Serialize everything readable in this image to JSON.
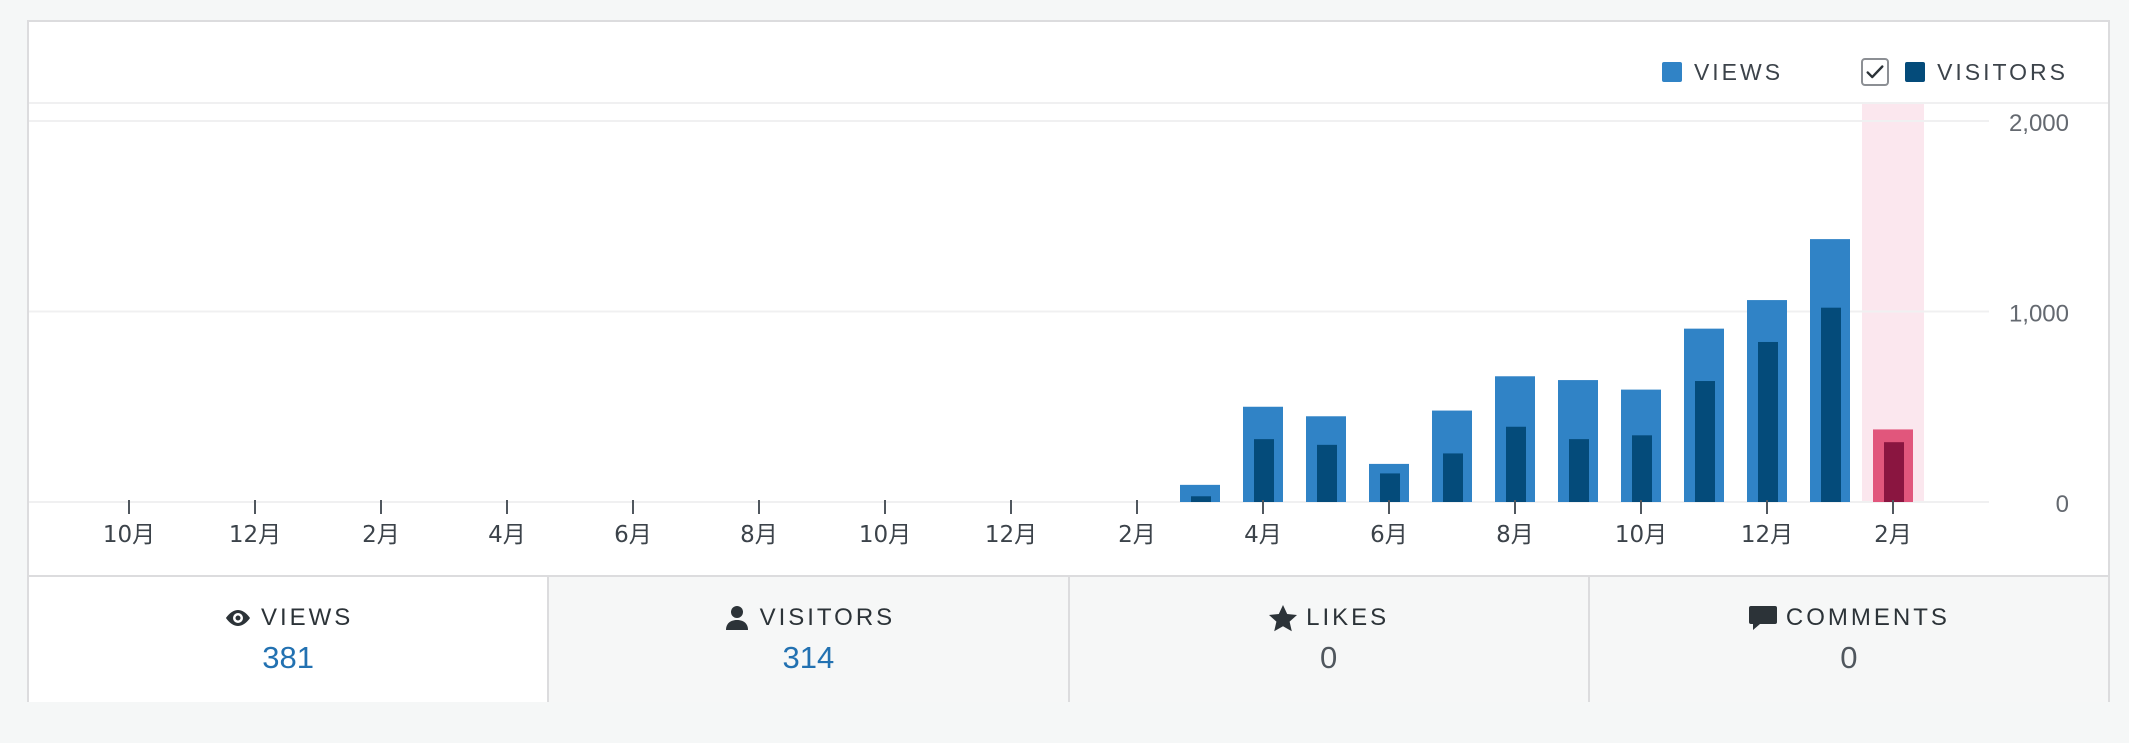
{
  "legend": {
    "views_label": "VIEWS",
    "visitors_label": "VISITORS",
    "visitors_checked": true
  },
  "colors": {
    "views": "#3083c6",
    "visitors": "#044b7a",
    "selected_views": "#e1567c",
    "selected_visitors": "#8a1540",
    "selected_band": "#fbe7ee",
    "grid": "#f0f0f1",
    "axis_text": "#50575e"
  },
  "chart_data": {
    "type": "bar",
    "categories": [
      "10月",
      "11月",
      "12月",
      "1月",
      "2月",
      "3月",
      "4月",
      "5月",
      "6月",
      "7月",
      "8月",
      "9月",
      "10月",
      "11月",
      "12月",
      "1月",
      "2月",
      "3月",
      "4月",
      "5月",
      "6月",
      "7月",
      "8月",
      "9月",
      "10月",
      "11月",
      "12月",
      "1月",
      "2月"
    ],
    "x_tick_labels": [
      "10月",
      "12月",
      "2月",
      "4月",
      "6月",
      "8月",
      "10月",
      "12月",
      "2月",
      "4月",
      "6月",
      "8月",
      "10月",
      "12月",
      "2月"
    ],
    "series": [
      {
        "name": "VIEWS",
        "values": [
          0,
          0,
          0,
          0,
          0,
          0,
          0,
          0,
          0,
          0,
          0,
          0,
          0,
          0,
          0,
          0,
          0,
          90,
          500,
          450,
          200,
          480,
          660,
          640,
          590,
          910,
          1060,
          1380,
          381
        ]
      },
      {
        "name": "VISITORS",
        "values": [
          0,
          0,
          0,
          0,
          0,
          0,
          0,
          0,
          0,
          0,
          0,
          0,
          0,
          0,
          0,
          0,
          0,
          30,
          330,
          300,
          150,
          255,
          395,
          330,
          350,
          635,
          840,
          1020,
          314
        ]
      }
    ],
    "selected_index": 28,
    "ylim": [
      0,
      2000
    ],
    "y_ticks": [
      0,
      1000,
      2000
    ],
    "y_tick_labels": [
      "0",
      "1,000",
      "2,000"
    ],
    "grid": true,
    "legend_position": "top-right"
  },
  "stats": [
    {
      "label": "VIEWS",
      "value": "381",
      "icon": "eye-icon",
      "active": true
    },
    {
      "label": "VISITORS",
      "value": "314",
      "icon": "person-icon",
      "active": false
    },
    {
      "label": "LIKES",
      "value": "0",
      "icon": "star-icon",
      "active": false
    },
    {
      "label": "COMMENTS",
      "value": "0",
      "icon": "comment-icon",
      "active": false
    }
  ]
}
